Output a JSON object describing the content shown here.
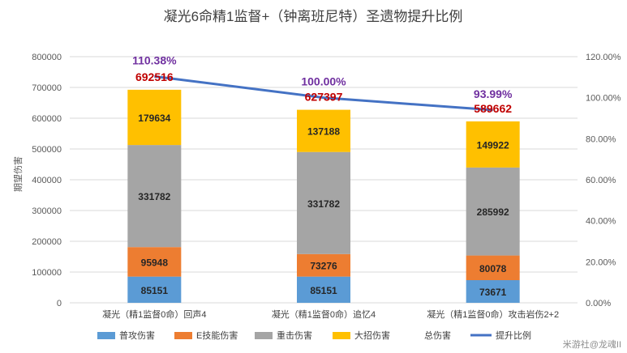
{
  "chart_data": {
    "type": "bar",
    "title": "凝光6命精1监督+（钟离班尼特）圣遗物提升比例",
    "ylabel": "期望伤害",
    "xlabel": "",
    "ylim": [
      0,
      800000
    ],
    "y2lim": [
      0,
      1.2
    ],
    "left_ticks": [
      "0",
      "100000",
      "200000",
      "300000",
      "400000",
      "500000",
      "600000",
      "700000",
      "800000"
    ],
    "right_ticks": [
      "0.00%",
      "20.00%",
      "40.00%",
      "60.00%",
      "80.00%",
      "100.00%",
      "120.00%"
    ],
    "categories": [
      "凝光（精1监督0命）回声4",
      "凝光（精1监督0命）追忆4",
      "凝光（精1监督0命）攻击岩伤2+2"
    ],
    "series": [
      {
        "name": "普攻伤害",
        "color": "#5b9bd5",
        "values": [
          85151,
          85151,
          73671
        ]
      },
      {
        "name": "E技能伤害",
        "color": "#ed7d31",
        "values": [
          95948,
          73276,
          80078
        ]
      },
      {
        "name": "重击伤害",
        "color": "#a5a5a5",
        "values": [
          331782,
          331782,
          285992
        ]
      },
      {
        "name": "大招伤害",
        "color": "#ffc000",
        "values": [
          179634,
          137188,
          149922
        ]
      }
    ],
    "totals": {
      "name": "总伤害",
      "values": [
        692516,
        627397,
        589662
      ],
      "labels": [
        "692516",
        "627397",
        "589662"
      ]
    },
    "ratio": {
      "name": "提升比例",
      "color": "#4472c4",
      "values": [
        1.1038,
        1.0,
        0.9399
      ],
      "labels": [
        "110.38%",
        "100.00%",
        "93.99%"
      ]
    },
    "legend_position": "bottom"
  },
  "watermark": "米游社@龙魂II"
}
